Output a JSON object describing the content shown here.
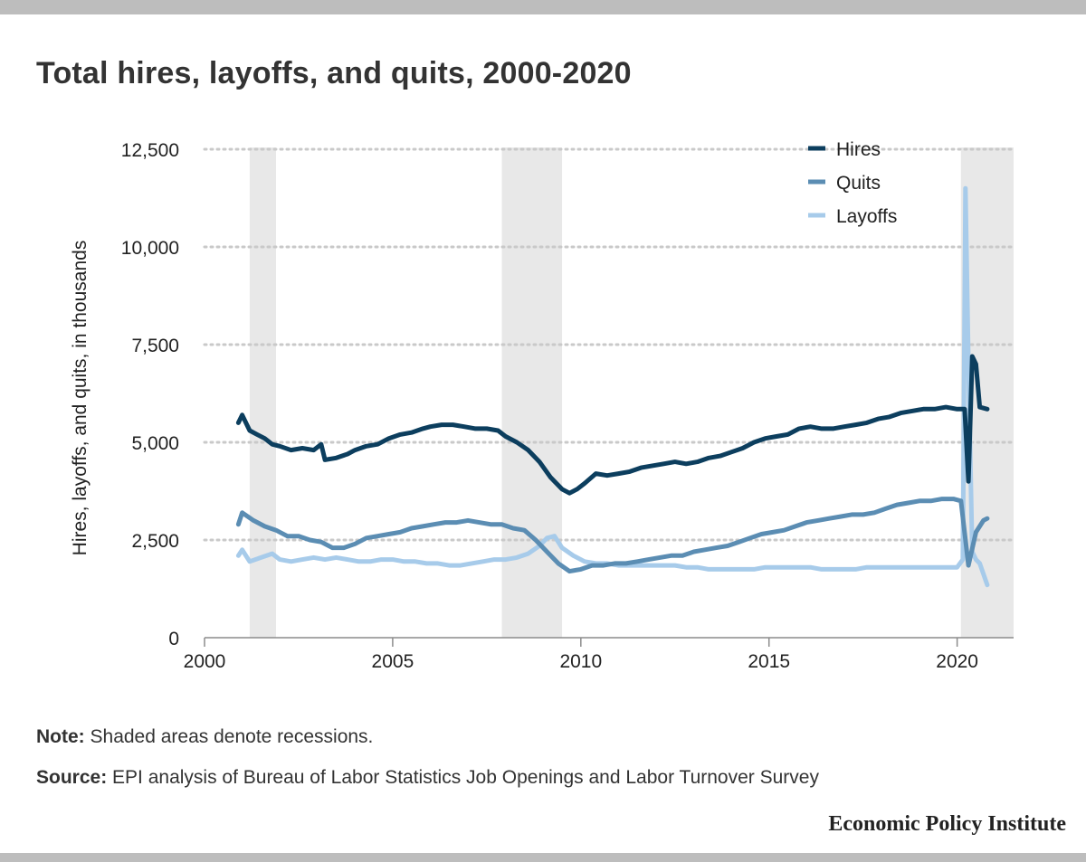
{
  "chart_data": {
    "type": "line",
    "title": "Total hires, layoffs, and quits, 2000-2020",
    "ylabel": "Hires, layoffs, and quits, in thousands",
    "xlabel": "",
    "xlim": [
      2000,
      2021.5
    ],
    "ylim": [
      0,
      12500
    ],
    "x_ticks": [
      2000,
      2005,
      2010,
      2015,
      2020
    ],
    "y_ticks": [
      0,
      2500,
      5000,
      7500,
      10000,
      12500
    ],
    "y_tick_labels": [
      "0",
      "2,500",
      "5,000",
      "7,500",
      "10,000",
      "12,500"
    ],
    "grid": "horizontal dotted",
    "legend_position": "top-right",
    "recessions": [
      [
        2001.2,
        2001.9
      ],
      [
        2007.9,
        2009.5
      ],
      [
        2020.1,
        2021.5
      ]
    ],
    "series": [
      {
        "name": "Hires",
        "color": "#0c3e5e",
        "points": [
          [
            2000.9,
            5500
          ],
          [
            2001.0,
            5700
          ],
          [
            2001.2,
            5300
          ],
          [
            2001.4,
            5200
          ],
          [
            2001.6,
            5100
          ],
          [
            2001.8,
            4950
          ],
          [
            2002.0,
            4900
          ],
          [
            2002.3,
            4800
          ],
          [
            2002.6,
            4850
          ],
          [
            2002.9,
            4800
          ],
          [
            2003.1,
            4950
          ],
          [
            2003.2,
            4550
          ],
          [
            2003.5,
            4600
          ],
          [
            2003.8,
            4700
          ],
          [
            2004.0,
            4800
          ],
          [
            2004.3,
            4900
          ],
          [
            2004.6,
            4950
          ],
          [
            2004.9,
            5100
          ],
          [
            2005.2,
            5200
          ],
          [
            2005.5,
            5250
          ],
          [
            2005.8,
            5350
          ],
          [
            2006.0,
            5400
          ],
          [
            2006.3,
            5450
          ],
          [
            2006.6,
            5450
          ],
          [
            2006.9,
            5400
          ],
          [
            2007.2,
            5350
          ],
          [
            2007.5,
            5350
          ],
          [
            2007.8,
            5300
          ],
          [
            2008.0,
            5150
          ],
          [
            2008.3,
            5000
          ],
          [
            2008.6,
            4800
          ],
          [
            2008.9,
            4500
          ],
          [
            2009.2,
            4100
          ],
          [
            2009.5,
            3800
          ],
          [
            2009.7,
            3700
          ],
          [
            2009.9,
            3800
          ],
          [
            2010.1,
            3950
          ],
          [
            2010.4,
            4200
          ],
          [
            2010.7,
            4150
          ],
          [
            2011.0,
            4200
          ],
          [
            2011.3,
            4250
          ],
          [
            2011.6,
            4350
          ],
          [
            2011.9,
            4400
          ],
          [
            2012.2,
            4450
          ],
          [
            2012.5,
            4500
          ],
          [
            2012.8,
            4450
          ],
          [
            2013.1,
            4500
          ],
          [
            2013.4,
            4600
          ],
          [
            2013.7,
            4650
          ],
          [
            2014.0,
            4750
          ],
          [
            2014.3,
            4850
          ],
          [
            2014.6,
            5000
          ],
          [
            2014.9,
            5100
          ],
          [
            2015.2,
            5150
          ],
          [
            2015.5,
            5200
          ],
          [
            2015.8,
            5350
          ],
          [
            2016.1,
            5400
          ],
          [
            2016.4,
            5350
          ],
          [
            2016.7,
            5350
          ],
          [
            2017.0,
            5400
          ],
          [
            2017.3,
            5450
          ],
          [
            2017.6,
            5500
          ],
          [
            2017.9,
            5600
          ],
          [
            2018.2,
            5650
          ],
          [
            2018.5,
            5750
          ],
          [
            2018.8,
            5800
          ],
          [
            2019.1,
            5850
          ],
          [
            2019.4,
            5850
          ],
          [
            2019.7,
            5900
          ],
          [
            2020.0,
            5850
          ],
          [
            2020.2,
            5850
          ],
          [
            2020.3,
            4000
          ],
          [
            2020.4,
            7200
          ],
          [
            2020.5,
            7000
          ],
          [
            2020.6,
            5900
          ],
          [
            2020.8,
            5850
          ]
        ]
      },
      {
        "name": "Quits",
        "color": "#5b8db3",
        "points": [
          [
            2000.9,
            2900
          ],
          [
            2001.0,
            3200
          ],
          [
            2001.3,
            3000
          ],
          [
            2001.6,
            2850
          ],
          [
            2001.9,
            2750
          ],
          [
            2002.2,
            2600
          ],
          [
            2002.5,
            2600
          ],
          [
            2002.8,
            2500
          ],
          [
            2003.1,
            2450
          ],
          [
            2003.4,
            2300
          ],
          [
            2003.7,
            2300
          ],
          [
            2004.0,
            2400
          ],
          [
            2004.3,
            2550
          ],
          [
            2004.6,
            2600
          ],
          [
            2004.9,
            2650
          ],
          [
            2005.2,
            2700
          ],
          [
            2005.5,
            2800
          ],
          [
            2005.8,
            2850
          ],
          [
            2006.1,
            2900
          ],
          [
            2006.4,
            2950
          ],
          [
            2006.7,
            2950
          ],
          [
            2007.0,
            3000
          ],
          [
            2007.3,
            2950
          ],
          [
            2007.6,
            2900
          ],
          [
            2007.9,
            2900
          ],
          [
            2008.2,
            2800
          ],
          [
            2008.5,
            2750
          ],
          [
            2008.8,
            2500
          ],
          [
            2009.1,
            2200
          ],
          [
            2009.4,
            1900
          ],
          [
            2009.7,
            1700
          ],
          [
            2010.0,
            1750
          ],
          [
            2010.3,
            1850
          ],
          [
            2010.6,
            1850
          ],
          [
            2010.9,
            1900
          ],
          [
            2011.2,
            1900
          ],
          [
            2011.5,
            1950
          ],
          [
            2011.8,
            2000
          ],
          [
            2012.1,
            2050
          ],
          [
            2012.4,
            2100
          ],
          [
            2012.7,
            2100
          ],
          [
            2013.0,
            2200
          ],
          [
            2013.3,
            2250
          ],
          [
            2013.6,
            2300
          ],
          [
            2013.9,
            2350
          ],
          [
            2014.2,
            2450
          ],
          [
            2014.5,
            2550
          ],
          [
            2014.8,
            2650
          ],
          [
            2015.1,
            2700
          ],
          [
            2015.4,
            2750
          ],
          [
            2015.7,
            2850
          ],
          [
            2016.0,
            2950
          ],
          [
            2016.3,
            3000
          ],
          [
            2016.6,
            3050
          ],
          [
            2016.9,
            3100
          ],
          [
            2017.2,
            3150
          ],
          [
            2017.5,
            3150
          ],
          [
            2017.8,
            3200
          ],
          [
            2018.1,
            3300
          ],
          [
            2018.4,
            3400
          ],
          [
            2018.7,
            3450
          ],
          [
            2019.0,
            3500
          ],
          [
            2019.3,
            3500
          ],
          [
            2019.6,
            3550
          ],
          [
            2019.9,
            3550
          ],
          [
            2020.1,
            3500
          ],
          [
            2020.3,
            1850
          ],
          [
            2020.5,
            2700
          ],
          [
            2020.7,
            3000
          ],
          [
            2020.8,
            3050
          ]
        ]
      },
      {
        "name": "Layoffs",
        "color": "#a7cbea",
        "points": [
          [
            2000.9,
            2100
          ],
          [
            2001.0,
            2250
          ],
          [
            2001.2,
            1950
          ],
          [
            2001.5,
            2050
          ],
          [
            2001.8,
            2150
          ],
          [
            2002.0,
            2000
          ],
          [
            2002.3,
            1950
          ],
          [
            2002.6,
            2000
          ],
          [
            2002.9,
            2050
          ],
          [
            2003.2,
            2000
          ],
          [
            2003.5,
            2050
          ],
          [
            2003.8,
            2000
          ],
          [
            2004.1,
            1950
          ],
          [
            2004.4,
            1950
          ],
          [
            2004.7,
            2000
          ],
          [
            2005.0,
            2000
          ],
          [
            2005.3,
            1950
          ],
          [
            2005.6,
            1950
          ],
          [
            2005.9,
            1900
          ],
          [
            2006.2,
            1900
          ],
          [
            2006.5,
            1850
          ],
          [
            2006.8,
            1850
          ],
          [
            2007.1,
            1900
          ],
          [
            2007.4,
            1950
          ],
          [
            2007.7,
            2000
          ],
          [
            2008.0,
            2000
          ],
          [
            2008.3,
            2050
          ],
          [
            2008.6,
            2150
          ],
          [
            2008.9,
            2350
          ],
          [
            2009.1,
            2550
          ],
          [
            2009.3,
            2600
          ],
          [
            2009.5,
            2300
          ],
          [
            2009.8,
            2100
          ],
          [
            2010.1,
            1950
          ],
          [
            2010.4,
            1900
          ],
          [
            2010.7,
            1900
          ],
          [
            2011.0,
            1850
          ],
          [
            2011.3,
            1850
          ],
          [
            2011.6,
            1850
          ],
          [
            2011.9,
            1850
          ],
          [
            2012.2,
            1850
          ],
          [
            2012.5,
            1850
          ],
          [
            2012.8,
            1800
          ],
          [
            2013.1,
            1800
          ],
          [
            2013.4,
            1750
          ],
          [
            2013.7,
            1750
          ],
          [
            2014.0,
            1750
          ],
          [
            2014.3,
            1750
          ],
          [
            2014.6,
            1750
          ],
          [
            2014.9,
            1800
          ],
          [
            2015.2,
            1800
          ],
          [
            2015.5,
            1800
          ],
          [
            2015.8,
            1800
          ],
          [
            2016.1,
            1800
          ],
          [
            2016.4,
            1750
          ],
          [
            2016.7,
            1750
          ],
          [
            2017.0,
            1750
          ],
          [
            2017.3,
            1750
          ],
          [
            2017.6,
            1800
          ],
          [
            2017.9,
            1800
          ],
          [
            2018.2,
            1800
          ],
          [
            2018.5,
            1800
          ],
          [
            2018.8,
            1800
          ],
          [
            2019.1,
            1800
          ],
          [
            2019.4,
            1800
          ],
          [
            2019.7,
            1800
          ],
          [
            2020.0,
            1800
          ],
          [
            2020.15,
            2000
          ],
          [
            2020.22,
            11500
          ],
          [
            2020.3,
            7000
          ],
          [
            2020.4,
            2200
          ],
          [
            2020.5,
            2000
          ],
          [
            2020.6,
            1900
          ],
          [
            2020.8,
            1350
          ]
        ]
      }
    ]
  },
  "notes": {
    "note_label": "Note:",
    "note_text": " Shaded areas denote recessions.",
    "source_label": "Source:",
    "source_text": " EPI analysis of Bureau of Labor Statistics Job Openings and Labor Turnover Survey"
  },
  "brand": "Economic Policy Institute"
}
